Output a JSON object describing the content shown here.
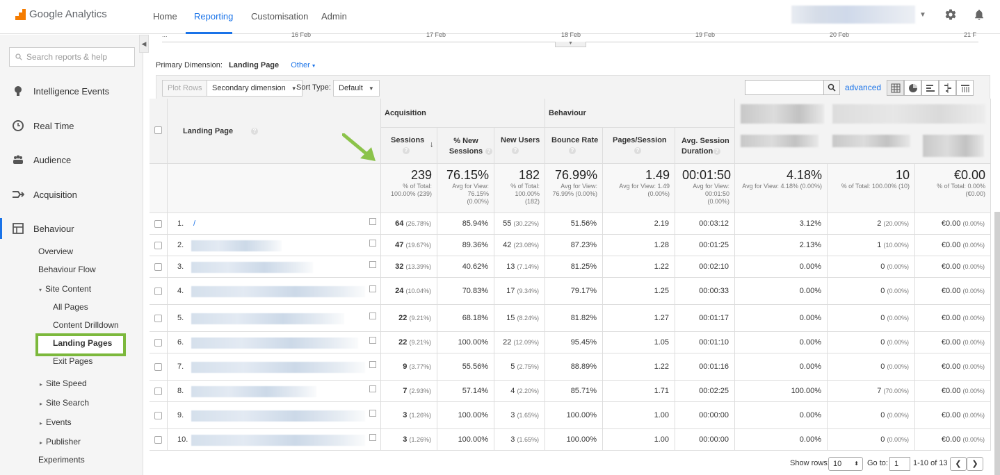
{
  "brand": {
    "name": "Google Analytics",
    "accent": "#1a73e8",
    "highlight": "#7cb83c",
    "logo_color": "#f57c00"
  },
  "topnav": {
    "home": "Home",
    "reporting": "Reporting",
    "customisation": "Customisation",
    "admin": "Admin"
  },
  "sidebar": {
    "search_placeholder": "Search reports & help",
    "items": [
      {
        "label": "Intelligence Events",
        "icon": "lightbulb-icon"
      },
      {
        "label": "Real Time",
        "icon": "clock-icon"
      },
      {
        "label": "Audience",
        "icon": "people-icon"
      },
      {
        "label": "Acquisition",
        "icon": "acquisition-icon"
      },
      {
        "label": "Behaviour",
        "icon": "behaviour-icon"
      }
    ],
    "behaviour_sub": {
      "overview": "Overview",
      "behaviour_flow": "Behaviour Flow",
      "site_content": "Site Content",
      "all_pages": "All Pages",
      "content_drilldown": "Content Drilldown",
      "landing_pages": "Landing Pages",
      "exit_pages": "Exit Pages",
      "site_speed": "Site Speed",
      "site_search": "Site Search",
      "events": "Events",
      "publisher": "Publisher",
      "experiments": "Experiments"
    }
  },
  "chart_axis": {
    "more": "...",
    "d1": "16 Feb",
    "d2": "17 Feb",
    "d3": "18 Feb",
    "d4": "19 Feb",
    "d5": "20 Feb",
    "d6": "21 F"
  },
  "dimension": {
    "label": "Primary Dimension:",
    "value": "Landing Page",
    "other": "Other"
  },
  "toolbar": {
    "plot_rows": "Plot Rows",
    "secondary": "Secondary dimension",
    "sort_type": "Sort Type:",
    "sort_value": "Default",
    "advanced": "advanced"
  },
  "table": {
    "groups": {
      "acquisition": "Acquisition",
      "behaviour": "Behaviour"
    },
    "columns": {
      "landing_page": "Landing Page",
      "sessions": "Sessions",
      "new_sessions": "% New Sessions",
      "new_users": "New Users",
      "bounce_rate": "Bounce Rate",
      "pages_session": "Pages/Session",
      "avg_duration": "Avg. Session Duration"
    },
    "totals": {
      "sessions": "239",
      "sessions_sub": "% of Total: 100.00% (239)",
      "new_sessions": "76.15%",
      "new_sessions_sub": "Avg for View: 76.15% (0.00%)",
      "new_users": "182",
      "new_users_sub": "% of Total: 100.00% (182)",
      "bounce": "76.99%",
      "bounce_sub": "Avg for View: 76.99% (0.00%)",
      "pps": "1.49",
      "pps_sub": "Avg for View: 1.49 (0.00%)",
      "dur": "00:01:50",
      "dur_sub": "Avg for View: 00:01:50 (0.00%)",
      "conv": "4.18%",
      "conv_sub": "Avg for View: 4.18% (0.00%)",
      "goal": "10",
      "goal_sub": "% of Total: 100.00% (10)",
      "value": "€0.00",
      "value_sub": "% of Total: 0.00% (€0.00)"
    },
    "rows": [
      {
        "idx": "1.",
        "page": "/",
        "sessions": "64",
        "sessions_pct": "(26.78%)",
        "new_sessions": "85.94%",
        "new_users": "55",
        "new_users_pct": "(30.22%)",
        "bounce": "51.56%",
        "pps": "2.19",
        "dur": "00:03:12",
        "conv": "3.12%",
        "goal": "2",
        "goal_pct": "(20.00%)",
        "value": "€0.00",
        "value_pct": "(0.00%)"
      },
      {
        "idx": "2.",
        "page": "",
        "sessions": "47",
        "sessions_pct": "(19.67%)",
        "new_sessions": "89.36%",
        "new_users": "42",
        "new_users_pct": "(23.08%)",
        "bounce": "87.23%",
        "pps": "1.28",
        "dur": "00:01:25",
        "conv": "2.13%",
        "goal": "1",
        "goal_pct": "(10.00%)",
        "value": "€0.00",
        "value_pct": "(0.00%)"
      },
      {
        "idx": "3.",
        "page": "",
        "sessions": "32",
        "sessions_pct": "(13.39%)",
        "new_sessions": "40.62%",
        "new_users": "13",
        "new_users_pct": "(7.14%)",
        "bounce": "81.25%",
        "pps": "1.22",
        "dur": "00:02:10",
        "conv": "0.00%",
        "goal": "0",
        "goal_pct": "(0.00%)",
        "value": "€0.00",
        "value_pct": "(0.00%)"
      },
      {
        "idx": "4.",
        "page": "",
        "sessions": "24",
        "sessions_pct": "(10.04%)",
        "new_sessions": "70.83%",
        "new_users": "17",
        "new_users_pct": "(9.34%)",
        "bounce": "79.17%",
        "pps": "1.25",
        "dur": "00:00:33",
        "conv": "0.00%",
        "goal": "0",
        "goal_pct": "(0.00%)",
        "value": "€0.00",
        "value_pct": "(0.00%)"
      },
      {
        "idx": "5.",
        "page": "",
        "sessions": "22",
        "sessions_pct": "(9.21%)",
        "new_sessions": "68.18%",
        "new_users": "15",
        "new_users_pct": "(8.24%)",
        "bounce": "81.82%",
        "pps": "1.27",
        "dur": "00:01:17",
        "conv": "0.00%",
        "goal": "0",
        "goal_pct": "(0.00%)",
        "value": "€0.00",
        "value_pct": "(0.00%)"
      },
      {
        "idx": "6.",
        "page": "",
        "sessions": "22",
        "sessions_pct": "(9.21%)",
        "new_sessions": "100.00%",
        "new_users": "22",
        "new_users_pct": "(12.09%)",
        "bounce": "95.45%",
        "pps": "1.05",
        "dur": "00:01:10",
        "conv": "0.00%",
        "goal": "0",
        "goal_pct": "(0.00%)",
        "value": "€0.00",
        "value_pct": "(0.00%)"
      },
      {
        "idx": "7.",
        "page": "",
        "sessions": "9",
        "sessions_pct": "(3.77%)",
        "new_sessions": "55.56%",
        "new_users": "5",
        "new_users_pct": "(2.75%)",
        "bounce": "88.89%",
        "pps": "1.22",
        "dur": "00:01:16",
        "conv": "0.00%",
        "goal": "0",
        "goal_pct": "(0.00%)",
        "value": "€0.00",
        "value_pct": "(0.00%)"
      },
      {
        "idx": "8.",
        "page": "",
        "sessions": "7",
        "sessions_pct": "(2.93%)",
        "new_sessions": "57.14%",
        "new_users": "4",
        "new_users_pct": "(2.20%)",
        "bounce": "85.71%",
        "pps": "1.71",
        "dur": "00:02:25",
        "conv": "100.00%",
        "goal": "7",
        "goal_pct": "(70.00%)",
        "value": "€0.00",
        "value_pct": "(0.00%)"
      },
      {
        "idx": "9.",
        "page": "",
        "sessions": "3",
        "sessions_pct": "(1.26%)",
        "new_sessions": "100.00%",
        "new_users": "3",
        "new_users_pct": "(1.65%)",
        "bounce": "100.00%",
        "pps": "1.00",
        "dur": "00:00:00",
        "conv": "0.00%",
        "goal": "0",
        "goal_pct": "(0.00%)",
        "value": "€0.00",
        "value_pct": "(0.00%)"
      },
      {
        "idx": "10.",
        "page": "",
        "sessions": "3",
        "sessions_pct": "(1.26%)",
        "new_sessions": "100.00%",
        "new_users": "3",
        "new_users_pct": "(1.65%)",
        "bounce": "100.00%",
        "pps": "1.00",
        "dur": "00:00:00",
        "conv": "0.00%",
        "goal": "0",
        "goal_pct": "(0.00%)",
        "value": "€0.00",
        "value_pct": "(0.00%)"
      }
    ]
  },
  "footer": {
    "show_rows": "Show rows:",
    "rows_value": "10",
    "go_to": "Go to:",
    "go_value": "1",
    "range": "1-10 of 13"
  }
}
